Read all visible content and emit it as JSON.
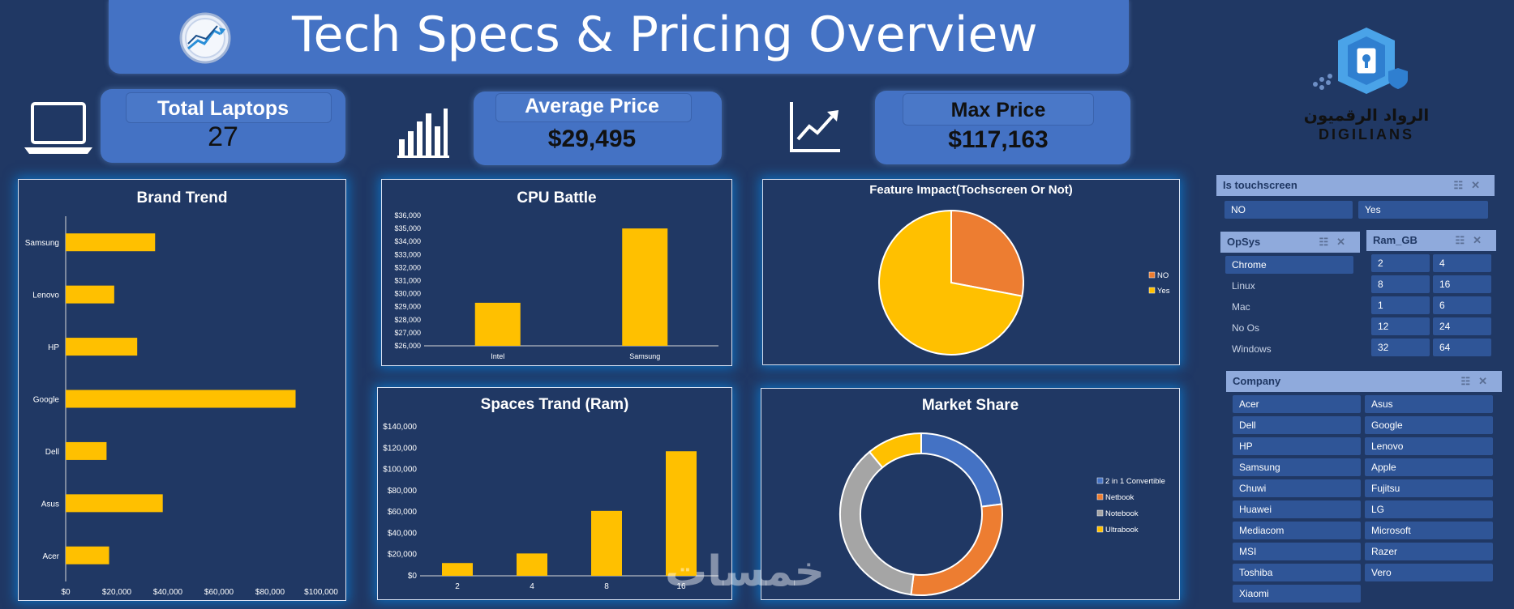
{
  "header": {
    "title": "Tech Specs & Pricing Overview"
  },
  "logo": {
    "text_ar": "الرواد الرقميون",
    "text_en": "DIGILIANS"
  },
  "kpis": {
    "total_laptops": {
      "label": "Total Laptops",
      "value": "27"
    },
    "average_price": {
      "label": "Average Price",
      "value": "$29,495"
    },
    "max_price": {
      "label": "Max Price",
      "value": "$117,163"
    }
  },
  "chart_data": [
    {
      "id": "brand_trend",
      "type": "bar",
      "orientation": "horizontal",
      "title": "Brand Trend",
      "categories": [
        "Samsung",
        "Lenovo",
        "HP",
        "Google",
        "Dell",
        "Asus",
        "Acer"
      ],
      "values": [
        35000,
        19000,
        28000,
        90000,
        16000,
        38000,
        17000
      ],
      "xlim": [
        0,
        100000
      ],
      "x_ticks": [
        "$0",
        "$20,000",
        "$40,000",
        "$60,000",
        "$80,000",
        "$100,000"
      ],
      "color": "#ffc000"
    },
    {
      "id": "cpu_battle",
      "type": "bar",
      "title": "CPU Battle",
      "categories": [
        "Intel",
        "Samsung"
      ],
      "values": [
        29300,
        35000
      ],
      "ylim": [
        26000,
        36000
      ],
      "y_ticks": [
        "$26,000",
        "$27,000",
        "$28,000",
        "$29,000",
        "$30,000",
        "$31,000",
        "$32,000",
        "$33,000",
        "$34,000",
        "$35,000",
        "$36,000"
      ],
      "color": "#ffc000"
    },
    {
      "id": "feature_impact",
      "type": "pie",
      "title": "Feature Impact(Tochscreen Or Not)",
      "labels": [
        "NO",
        "Yes"
      ],
      "values": [
        28,
        72
      ],
      "colors": [
        "#ed7d31",
        "#ffc000"
      ],
      "legend": "right"
    },
    {
      "id": "spaces_trand",
      "type": "bar",
      "title": "Spaces Trand (Ram)",
      "categories": [
        "2",
        "4",
        "8",
        "16"
      ],
      "values": [
        12000,
        21000,
        61000,
        117000
      ],
      "ylim": [
        0,
        140000
      ],
      "y_ticks": [
        "$0",
        "$20,000",
        "$40,000",
        "$60,000",
        "$80,000",
        "$100,000",
        "$120,000",
        "$140,000"
      ],
      "color": "#ffc000"
    },
    {
      "id": "market_share",
      "type": "pie",
      "donut": true,
      "title": "Market Share",
      "labels": [
        "2 in 1 Convertible",
        "Netbook",
        "Notebook",
        "Ultrabook"
      ],
      "values": [
        23,
        29,
        37,
        11
      ],
      "colors": [
        "#4472c4",
        "#ed7d31",
        "#a5a5a5",
        "#ffc000"
      ],
      "legend": "right"
    }
  ],
  "slicers": {
    "touchscreen": {
      "title": "Is touchscreen",
      "items": [
        "NO",
        "Yes"
      ]
    },
    "opsys": {
      "title": "OpSys",
      "items": [
        "Chrome",
        "Linux",
        "Mac",
        "No Os",
        "Windows"
      ]
    },
    "ram": {
      "title": "Ram_GB",
      "items": [
        "2",
        "4",
        "8",
        "16",
        "1",
        "6",
        "12",
        "24",
        "32",
        "64"
      ]
    },
    "company": {
      "title": "Company",
      "items": [
        "Acer",
        "Asus",
        "Dell",
        "Google",
        "HP",
        "Lenovo",
        "Samsung",
        "Apple",
        "Chuwi",
        "Fujitsu",
        "Huawei",
        "LG",
        "Mediacom",
        "Microsoft",
        "MSI",
        "Razer",
        "Toshiba",
        "Vero",
        "Xiaomi"
      ]
    }
  },
  "watermark": "خمسات"
}
